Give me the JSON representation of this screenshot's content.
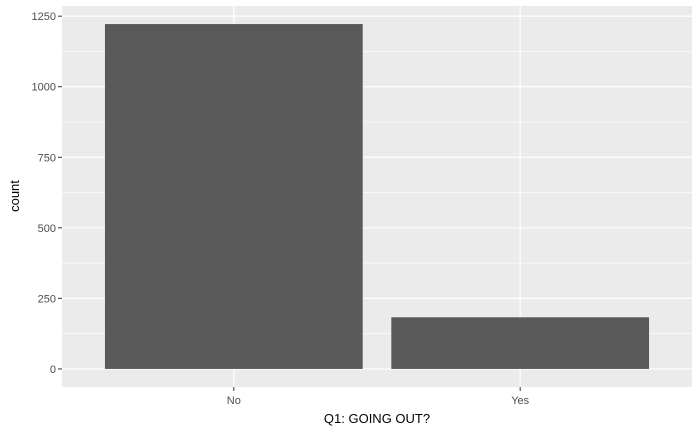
{
  "chart_data": {
    "type": "bar",
    "title": "",
    "xlabel": "Q1: GOING OUT?",
    "ylabel": "count",
    "categories": [
      "No",
      "Yes"
    ],
    "values": [
      1222,
      183
    ],
    "ylim": [
      -64,
      1286
    ],
    "yticks": [
      0,
      250,
      500,
      750,
      1000,
      1250
    ],
    "grid": true,
    "legend": "none",
    "colors": {
      "panel": "#ebebeb",
      "grid_major": "#ffffff",
      "bar": "#595959",
      "tick_text": "#4d4d4d",
      "title_text": "#000000"
    }
  }
}
